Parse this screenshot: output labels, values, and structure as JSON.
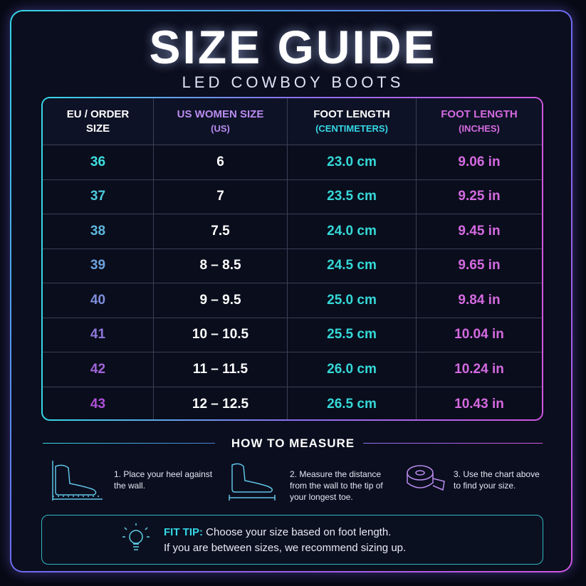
{
  "header": {
    "title": "SIZE GUIDE",
    "subtitle": "LED COWBOY BOOTS"
  },
  "table": {
    "columns": [
      {
        "label": "EU / ORDER SIZE"
      },
      {
        "label": "US WOMEN SIZE",
        "sublabel": "(US)"
      },
      {
        "label": "FOOT LENGTH",
        "sublabel": "(CENTIMETERS)"
      },
      {
        "label": "FOOT LENGTH",
        "sublabel": "(INCHES)"
      }
    ],
    "rows": [
      [
        "36",
        "6",
        "23.0 cm",
        "9.06 in"
      ],
      [
        "37",
        "7",
        "23.5 cm",
        "9.25 in"
      ],
      [
        "38",
        "7.5",
        "24.0 cm",
        "9.45 in"
      ],
      [
        "39",
        "8 – 8.5",
        "24.5 cm",
        "9.65 in"
      ],
      [
        "40",
        "9 – 9.5",
        "25.0 cm",
        "9.84 in"
      ],
      [
        "41",
        "10 – 10.5",
        "25.5 cm",
        "10.04 in"
      ],
      [
        "42",
        "11 – 11.5",
        "26.0 cm",
        "10.24 in"
      ],
      [
        "43",
        "12 – 12.5",
        "26.5 cm",
        "10.43 in"
      ]
    ]
  },
  "measure": {
    "title": "HOW TO MEASURE",
    "steps": [
      "1. Place your heel against the wall.",
      "2. Measure the distance from the wall to the tip of your longest toe.",
      "3. Use the chart above to find your size."
    ]
  },
  "tip": {
    "label": "FIT TIP:",
    "line1": "Choose your size based on foot length.",
    "line2": "If you are between sizes, we recommend sizing up."
  }
}
